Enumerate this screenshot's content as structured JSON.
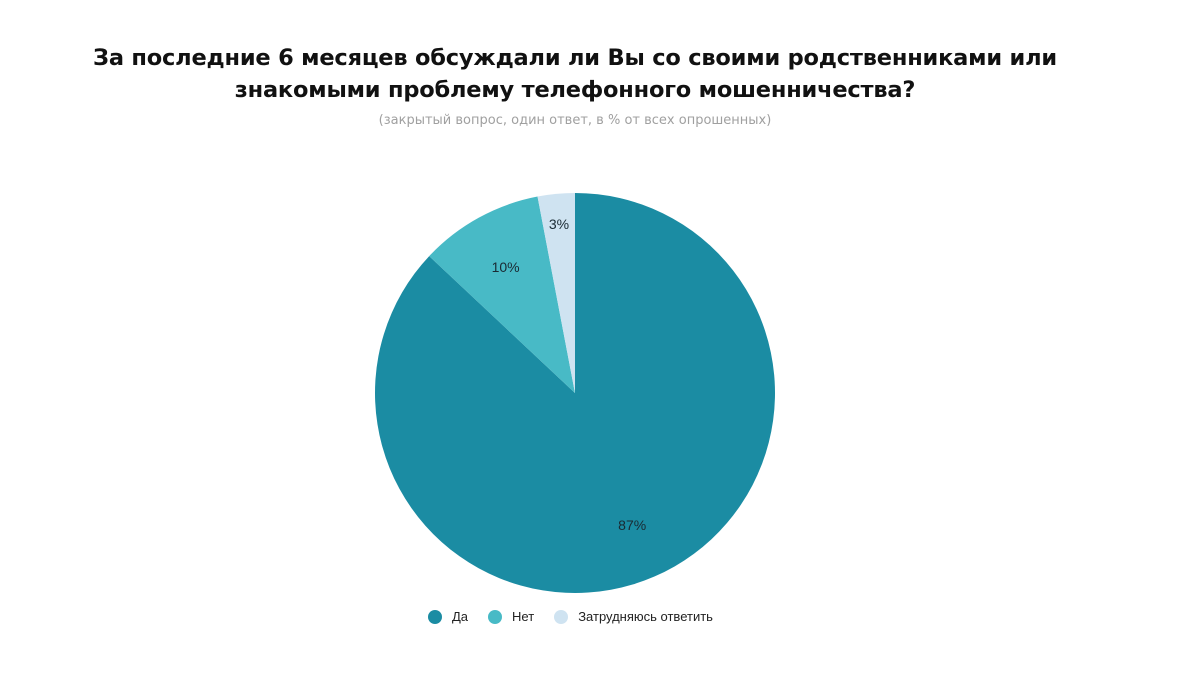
{
  "title_line1": "За последние 6 месяцев обсуждали ли Вы со своими родственниками или",
  "title_line2": "знакомыми проблему телефонного мошенничества?",
  "subtitle": "(закрытый вопрос, один ответ, в % от всех опрошенных)",
  "colors": {
    "da": "#1b8ca3",
    "net": "#48bac6",
    "zatr": "#cfe3f1"
  },
  "chart_data": {
    "type": "pie",
    "title": "За последние 6 месяцев обсуждали ли Вы со своими родственниками или знакомыми проблему телефонного мошенничества?",
    "subtitle": "(закрытый вопрос, один ответ, в % от всех опрошенных)",
    "categories": [
      "Да",
      "Нет",
      "Затрудняюсь ответить"
    ],
    "values": [
      87,
      10,
      3
    ],
    "labels": [
      "87%",
      "10%",
      "3%"
    ],
    "legend_position": "bottom"
  },
  "legend": [
    {
      "label": "Да"
    },
    {
      "label": "Нет"
    },
    {
      "label": "Затрудняюсь ответить"
    }
  ]
}
